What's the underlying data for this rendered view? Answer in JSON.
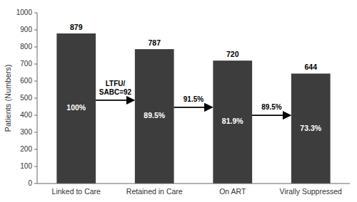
{
  "chart_data": {
    "type": "bar",
    "categories": [
      "Linked to Care",
      "Retained in Care",
      "On ART",
      "Virally Suppressed"
    ],
    "values": [
      879,
      787,
      720,
      644
    ],
    "color": "#3d3d3d",
    "data_labels": true,
    "ylabel": "Patients (Numbers)",
    "ylim": [
      0,
      1000
    ],
    "yticks": [
      0,
      100,
      200,
      300,
      400,
      500,
      600,
      700,
      800,
      900,
      1000
    ],
    "grid": false,
    "annotations": {
      "in_bars": [
        "100%",
        "89.5%",
        "81.9%",
        "73.3%"
      ],
      "between_bars": [
        "LTFU/\nSABC=92",
        "91.5%",
        "89.5%"
      ]
    }
  }
}
